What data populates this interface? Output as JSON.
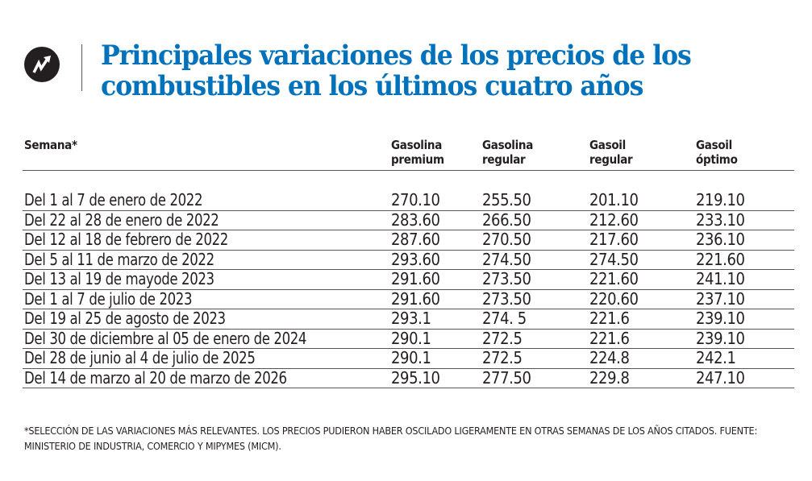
{
  "title": "Principales variaciones de los precios de los combustibles en los últimos cuatro años",
  "icon": "trending-up-arrow-icon",
  "accent_color": "#0072bc",
  "chart_data": {
    "type": "table",
    "title": "Principales variaciones de los precios de los combustibles en los últimos cuatro años",
    "columns": [
      "Semana*",
      "Gasolina premium",
      "Gasolina regular",
      "Gasoil regular",
      "Gasoil óptimo"
    ],
    "rows": [
      [
        "Del 1 al 7 de enero de 2022",
        "270.10",
        "255.50",
        "201.10",
        "219.10"
      ],
      [
        "Del 22 al 28 de enero de 2022",
        "283.60",
        "266.50",
        "212.60",
        "233.10"
      ],
      [
        "Del 12 al 18 de febrero de 2022",
        "287.60",
        "270.50",
        "217.60",
        "236.10"
      ],
      [
        "Del 5 al 11 de marzo de 2022",
        "293.60",
        "274.50",
        "274.50",
        "221.60"
      ],
      [
        "Del 13 al 19 de mayode 2023",
        "291.60",
        "273.50",
        "221.60",
        "241.10"
      ],
      [
        "Del 1 al 7 de julio de 2023",
        "291.60",
        "273.50",
        "220.60",
        "237.10"
      ],
      [
        "Del 19 al 25 de agosto de 2023",
        "293.1",
        "274. 5",
        "221.6",
        "239.10"
      ],
      [
        "Del 30 de diciembre al 05 de enero de 2024",
        "290.1",
        "272.5",
        "221.6",
        "239.10"
      ],
      [
        "Del 28 de junio al 4 de julio de 2025",
        "290.1",
        "272.5",
        "224.8",
        "242.1"
      ],
      [
        "Del 14 de marzo al 20 de marzo de 2026",
        "295.10",
        "277.50",
        "229.8",
        "247.10"
      ]
    ],
    "footnote": "*SELECCIÓN DE LAS VARIACIONES MÁS RELEVANTES. LOS PRECIOS PUDIERON HABER OSCILADO LIGERAMENTE EN OTRAS SEMANAS DE LOS AÑOS CITADOS. FUENTE: MINISTERIO DE INDUSTRIA, COMERCIO Y MIPYMES (MICM)."
  }
}
